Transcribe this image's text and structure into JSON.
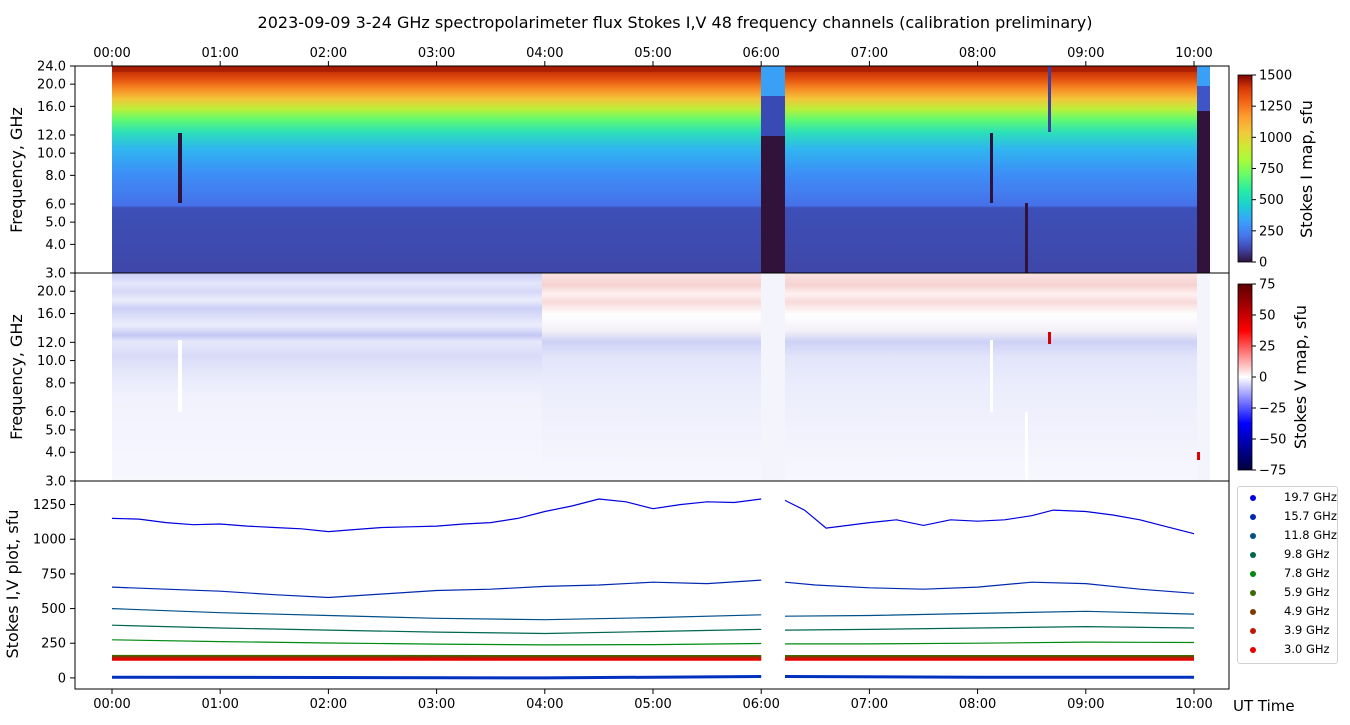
{
  "title": "2023-09-09     3-24 GHz spectropolarimeter flux   Stokes I,V   48 frequency channels   (calibration preliminary)",
  "time_ticks": [
    "00:00",
    "01:00",
    "02:00",
    "03:00",
    "04:00",
    "05:00",
    "06:00",
    "07:00",
    "08:00",
    "09:00",
    "10:00"
  ],
  "xlabel": "UT Time",
  "panels": {
    "stokes_i_map": {
      "ylabel": "Frequency, GHz",
      "yticks": [
        "3.0",
        "4.0",
        "5.0",
        "6.0",
        "8.0",
        "10.0",
        "12.0",
        "16.0",
        "20.0",
        "24.0"
      ],
      "colorbar_label": "Stokes I map, sfu",
      "colorbar_ticks": [
        "0",
        "250",
        "500",
        "750",
        "1000",
        "1250",
        "1500"
      ]
    },
    "stokes_v_map": {
      "ylabel": "Frequency, GHz",
      "yticks": [
        "3.0",
        "4.0",
        "5.0",
        "6.0",
        "8.0",
        "10.0",
        "12.0",
        "16.0",
        "20.0"
      ],
      "colorbar_label": "Stokes V map, sfu",
      "colorbar_ticks": [
        "75",
        "50",
        "25",
        "0",
        "−25",
        "−50",
        "−75"
      ]
    },
    "iv_plot": {
      "ylabel": "Stokes I,V plot, sfu",
      "yticks": [
        "0",
        "250",
        "500",
        "750",
        "1000",
        "1250"
      ]
    }
  },
  "legend": [
    {
      "label": "19.7 GHz",
      "color": "#0000e0"
    },
    {
      "label": "15.7 GHz",
      "color": "#0028b0"
    },
    {
      "label": "11.8 GHz",
      "color": "#00508a"
    },
    {
      "label": "9.8 GHz",
      "color": "#006650"
    },
    {
      "label": "7.8 GHz",
      "color": "#008a10"
    },
    {
      "label": "5.9 GHz",
      "color": "#3d6a00"
    },
    {
      "label": "4.9 GHz",
      "color": "#7a3d00"
    },
    {
      "label": "3.9 GHz",
      "color": "#c01800"
    },
    {
      "label": "3.0 GHz",
      "color": "#e80000"
    }
  ],
  "chart_data": {
    "type": "line",
    "x_unit": "UT hours",
    "xlim": [
      -0.3,
      10.33
    ],
    "ylim": [
      -80,
      1420
    ],
    "events": {
      "data_gap": [
        6.0,
        6.22
      ],
      "data_gap_end": [
        10.03,
        10.15
      ]
    },
    "series": [
      {
        "name": "19.7 GHz",
        "x": [
          0,
          0.25,
          0.5,
          0.75,
          1,
          1.25,
          1.5,
          1.75,
          2,
          2.25,
          2.5,
          2.75,
          3,
          3.25,
          3.5,
          3.75,
          4,
          4.25,
          4.5,
          4.75,
          5,
          5.25,
          5.5,
          5.75,
          6.0,
          6.22,
          6.4,
          6.6,
          6.8,
          7.0,
          7.25,
          7.5,
          7.75,
          8,
          8.25,
          8.5,
          8.7,
          9,
          9.25,
          9.5,
          9.75,
          10.0
        ],
        "y": [
          1150,
          1145,
          1120,
          1105,
          1110,
          1095,
          1085,
          1075,
          1055,
          1070,
          1085,
          1090,
          1095,
          1110,
          1120,
          1150,
          1200,
          1240,
          1290,
          1270,
          1220,
          1250,
          1270,
          1265,
          1290,
          1280,
          1210,
          1080,
          1100,
          1120,
          1140,
          1100,
          1140,
          1130,
          1140,
          1170,
          1210,
          1200,
          1175,
          1140,
          1090,
          1040
        ]
      },
      {
        "name": "15.7 GHz",
        "x": [
          0,
          0.5,
          1,
          1.5,
          2,
          2.5,
          3,
          3.5,
          4,
          4.5,
          5,
          5.5,
          6.0,
          6.22,
          6.5,
          7,
          7.5,
          8,
          8.5,
          9,
          9.5,
          10.0
        ],
        "y": [
          655,
          640,
          625,
          600,
          580,
          605,
          630,
          640,
          660,
          670,
          690,
          680,
          705,
          690,
          670,
          650,
          640,
          655,
          690,
          680,
          640,
          610
        ]
      },
      {
        "name": "11.8 GHz",
        "x": [
          0,
          1,
          2,
          3,
          4,
          5,
          6.0,
          6.22,
          7,
          8,
          9,
          10.0
        ],
        "y": [
          500,
          470,
          450,
          430,
          420,
          435,
          455,
          445,
          450,
          465,
          480,
          460
        ]
      },
      {
        "name": "9.8 GHz",
        "x": [
          0,
          1,
          2,
          3,
          4,
          5,
          6.0,
          6.22,
          7,
          8,
          9,
          10.0
        ],
        "y": [
          380,
          360,
          345,
          330,
          320,
          335,
          350,
          345,
          350,
          360,
          370,
          360
        ]
      },
      {
        "name": "7.8 GHz",
        "x": [
          0,
          1,
          2,
          3,
          4,
          5,
          6.0,
          6.22,
          7,
          8,
          9,
          10.0
        ],
        "y": [
          275,
          262,
          252,
          244,
          238,
          240,
          248,
          245,
          245,
          250,
          258,
          255
        ]
      },
      {
        "name": "5.9 GHz",
        "x": [
          0,
          2,
          4,
          6.0,
          6.22,
          8,
          10.0
        ],
        "y": [
          158,
          158,
          157,
          157,
          157,
          157,
          157
        ]
      },
      {
        "name": "4.9 GHz",
        "x": [
          0,
          2,
          4,
          6.0,
          6.22,
          8,
          10.0
        ],
        "y": [
          150,
          150,
          149,
          149,
          149,
          149,
          149
        ]
      },
      {
        "name": "3.9 GHz",
        "x": [
          0,
          2,
          4,
          6.0,
          6.22,
          8,
          10.0
        ],
        "y": [
          140,
          140,
          139,
          139,
          139,
          139,
          139
        ]
      },
      {
        "name": "3.0 GHz",
        "x": [
          0,
          2,
          4,
          6.0,
          6.22,
          8,
          10.0
        ],
        "y": [
          132,
          132,
          131,
          131,
          131,
          131,
          131
        ]
      }
    ],
    "stokes_v_lines": {
      "x": [
        0,
        2,
        4,
        6.0,
        6.22,
        8,
        10.0
      ],
      "y": [
        5,
        3,
        0,
        10,
        10,
        5,
        5
      ]
    }
  }
}
